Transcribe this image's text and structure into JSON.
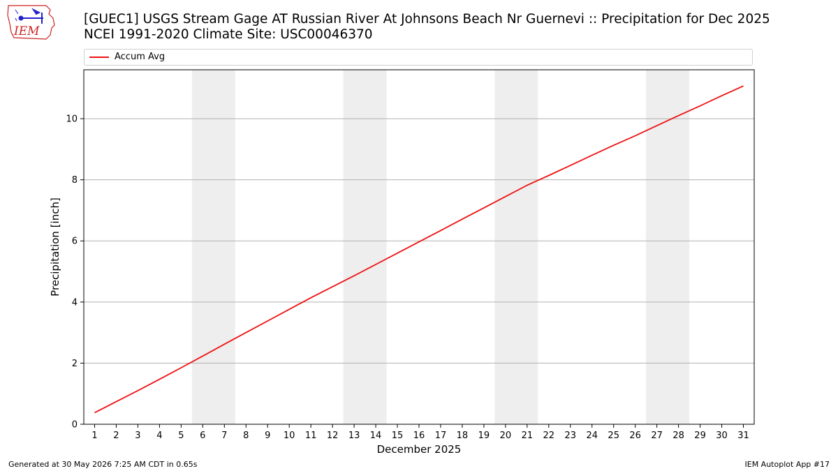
{
  "header": {
    "title_line1": "[GUEC1] USGS Stream Gage  AT Russian River At Johnsons Beach Nr Guernevi :: Precipitation for Dec 2025",
    "title_line2": "NCEI 1991-2020 Climate Site: USC00046370",
    "logo_text": "IEM"
  },
  "footer": {
    "generated": "Generated at 30 May 2026 7:25 AM CDT in 0.65s",
    "app": "IEM Autoplot App #17"
  },
  "colors": {
    "series": "#ee1111",
    "weekend_band": "#eeeeee",
    "grid": "#b0b0b0",
    "logo": "#cc2222",
    "logo_mark": "#2222cc"
  },
  "chart_data": {
    "type": "line",
    "xlabel": "December 2025",
    "ylabel": "Precipitation [inch]",
    "xlim": [
      0.5,
      31.5
    ],
    "ylim": [
      0,
      11.6
    ],
    "x_ticks": [
      1,
      2,
      3,
      4,
      5,
      6,
      7,
      8,
      9,
      10,
      11,
      12,
      13,
      14,
      15,
      16,
      17,
      18,
      19,
      20,
      21,
      22,
      23,
      24,
      25,
      26,
      27,
      28,
      29,
      30,
      31
    ],
    "y_ticks": [
      0,
      2,
      4,
      6,
      8,
      10
    ],
    "grid": "y",
    "legend": {
      "placement": "top",
      "entries": [
        "Accum Avg"
      ]
    },
    "weekend_bands": [
      [
        6,
        7
      ],
      [
        13,
        14
      ],
      [
        20,
        21
      ],
      [
        27,
        28
      ]
    ],
    "series": [
      {
        "name": "Accum Avg",
        "x": [
          1,
          2,
          3,
          4,
          5,
          6,
          7,
          8,
          9,
          10,
          11,
          12,
          13,
          14,
          15,
          16,
          17,
          18,
          19,
          20,
          21,
          22,
          23,
          24,
          25,
          26,
          27,
          28,
          29,
          30,
          31
        ],
        "values": [
          0.38,
          0.74,
          1.1,
          1.47,
          1.85,
          2.23,
          2.62,
          3.0,
          3.38,
          3.76,
          4.14,
          4.5,
          4.86,
          5.23,
          5.6,
          5.97,
          6.34,
          6.71,
          7.08,
          7.45,
          7.82,
          8.14,
          8.47,
          8.8,
          9.13,
          9.44,
          9.77,
          10.1,
          10.42,
          10.75,
          11.07
        ]
      }
    ]
  }
}
